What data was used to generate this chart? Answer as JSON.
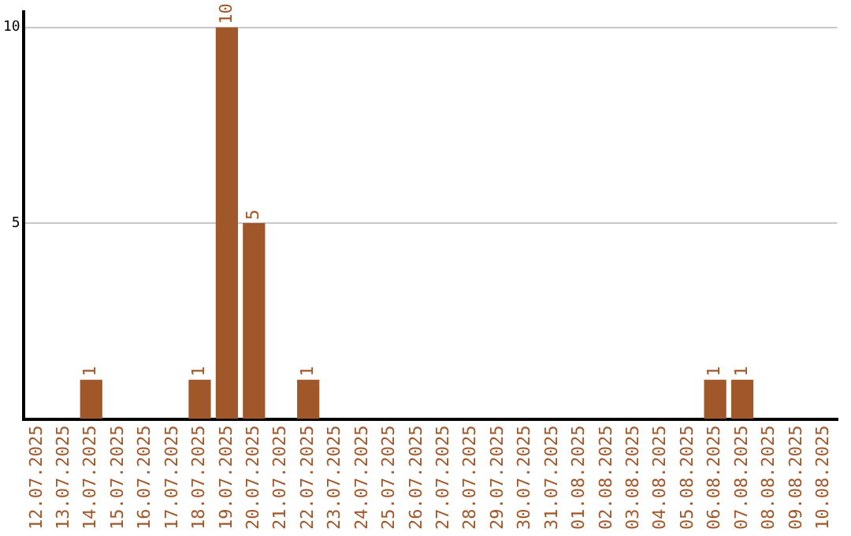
{
  "chart_data": {
    "type": "bar",
    "categories": [
      "12.07.2025",
      "13.07.2025",
      "14.07.2025",
      "15.07.2025",
      "16.07.2025",
      "17.07.2025",
      "18.07.2025",
      "19.07.2025",
      "20.07.2025",
      "21.07.2025",
      "22.07.2025",
      "23.07.2025",
      "24.07.2025",
      "25.07.2025",
      "26.07.2025",
      "27.07.2025",
      "28.07.2025",
      "29.07.2025",
      "30.07.2025",
      "31.07.2025",
      "01.08.2025",
      "02.08.2025",
      "03.08.2025",
      "04.08.2025",
      "05.08.2025",
      "06.08.2025",
      "07.08.2025",
      "08.08.2025",
      "09.08.2025",
      "10.08.2025"
    ],
    "values": [
      0,
      0,
      1,
      0,
      0,
      0,
      1,
      10,
      5,
      0,
      1,
      0,
      0,
      0,
      0,
      0,
      0,
      0,
      0,
      0,
      0,
      0,
      0,
      0,
      0,
      1,
      1,
      0,
      0,
      0
    ],
    "value_labels": [
      null,
      null,
      "1",
      null,
      null,
      null,
      "1",
      "10",
      "5",
      null,
      "1",
      null,
      null,
      null,
      null,
      null,
      null,
      null,
      null,
      null,
      null,
      null,
      null,
      null,
      null,
      "1",
      "1",
      null,
      null,
      null
    ],
    "color": "#a0572a",
    "ylim": [
      0,
      10.4
    ],
    "yticks": [
      5,
      10
    ],
    "grid": "y"
  }
}
